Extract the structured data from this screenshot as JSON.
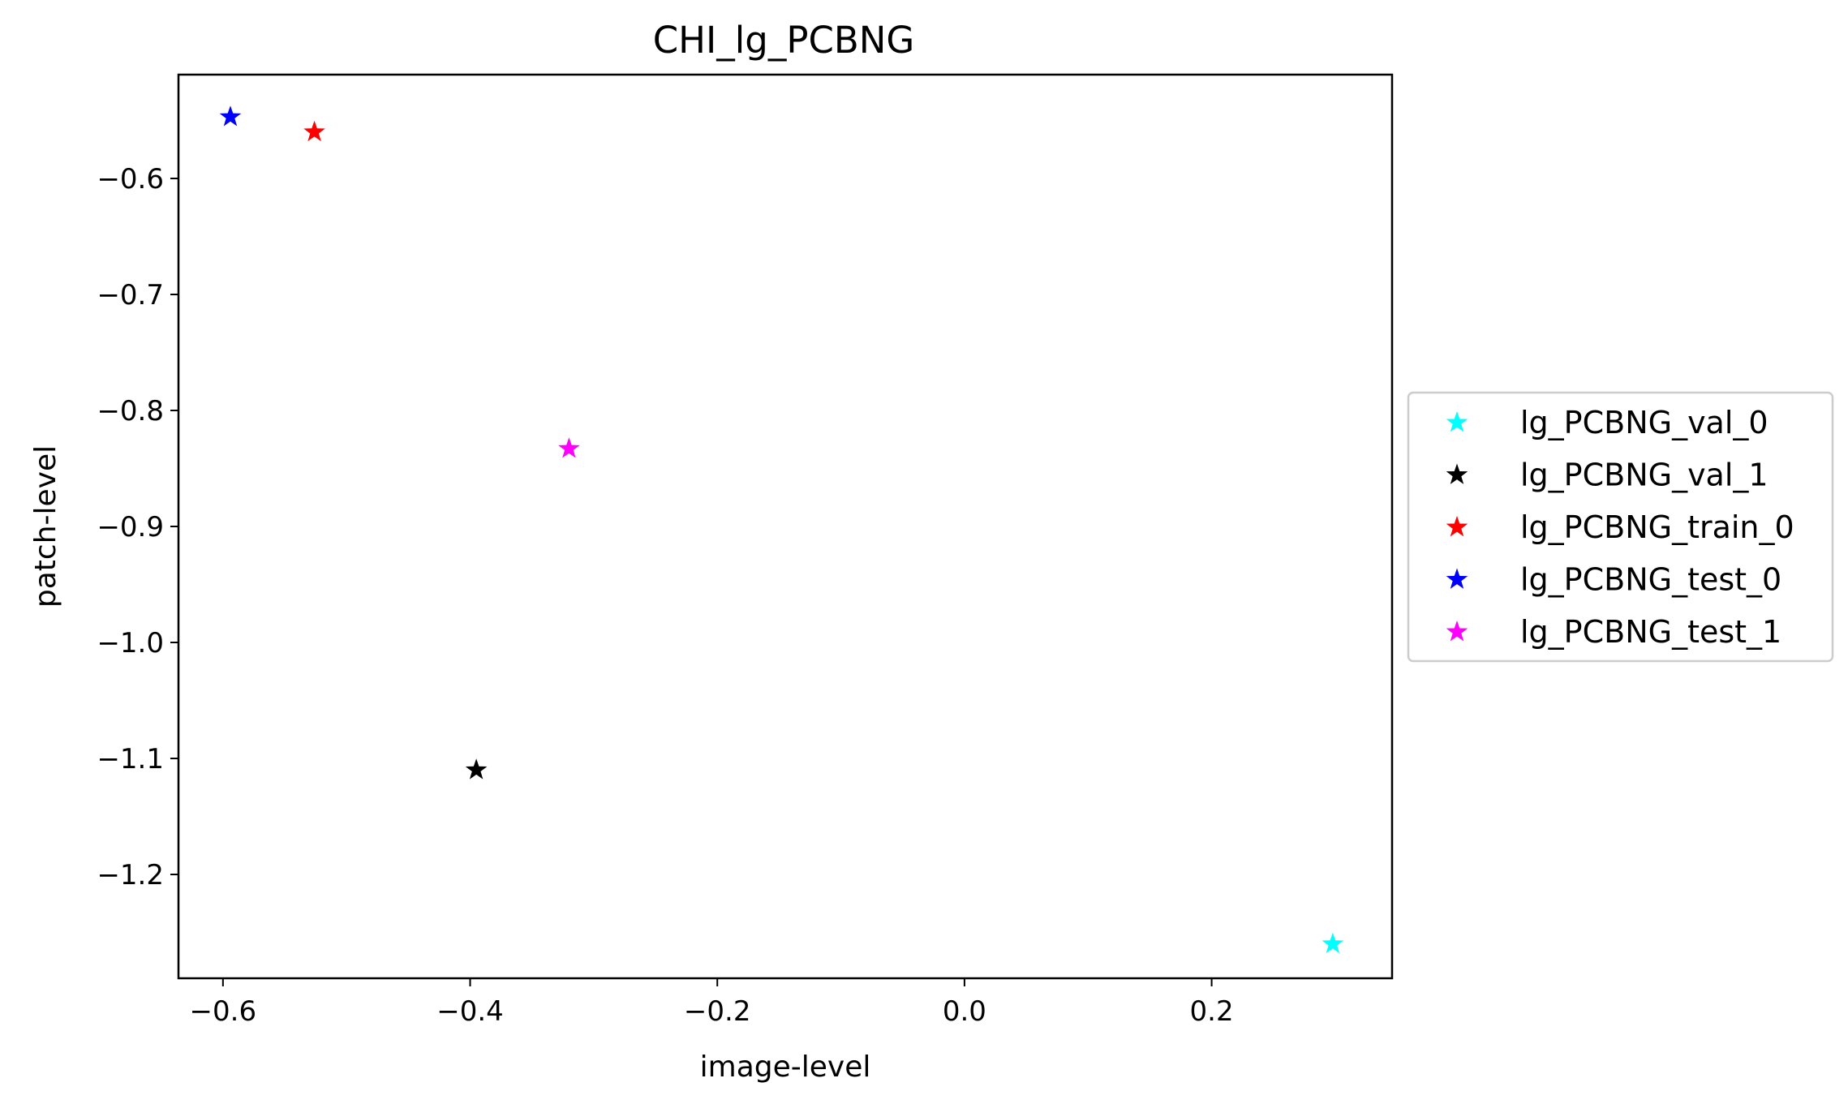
{
  "chart_data": {
    "type": "scatter",
    "title": "CHI_lg_PCBNG",
    "xlabel": "image-level",
    "ylabel": "patch-level",
    "xlim": [
      -0.636,
      0.346
    ],
    "ylim": [
      -1.2895,
      -0.5105
    ],
    "xticks": [
      -0.6,
      -0.4,
      -0.2,
      0.0,
      0.2
    ],
    "xtick_labels": [
      "−0.6",
      "−0.4",
      "−0.2",
      "0.0",
      "0.2"
    ],
    "yticks": [
      -0.6,
      -0.7,
      -0.8,
      -0.9,
      -1.0,
      -1.1,
      -1.2
    ],
    "ytick_labels": [
      "−0.6",
      "−0.7",
      "−0.8",
      "−0.9",
      "−1.0",
      "−1.1",
      "−1.2"
    ],
    "grid": false,
    "legend_position": "outside-right",
    "marker": "star",
    "series": [
      {
        "name": "lg_PCBNG_val_0",
        "color": "#00ffff",
        "points": [
          [
            0.298,
            -1.26
          ]
        ]
      },
      {
        "name": "lg_PCBNG_val_1",
        "color": "#000000",
        "points": [
          [
            -0.395,
            -1.11
          ]
        ]
      },
      {
        "name": "lg_PCBNG_train_0",
        "color": "#ff0000",
        "points": [
          [
            -0.526,
            -0.56
          ]
        ]
      },
      {
        "name": "lg_PCBNG_test_0",
        "color": "#0000ff",
        "points": [
          [
            -0.594,
            -0.547
          ]
        ]
      },
      {
        "name": "lg_PCBNG_test_1",
        "color": "#ff00ff",
        "points": [
          [
            -0.32,
            -0.833
          ]
        ]
      }
    ]
  }
}
